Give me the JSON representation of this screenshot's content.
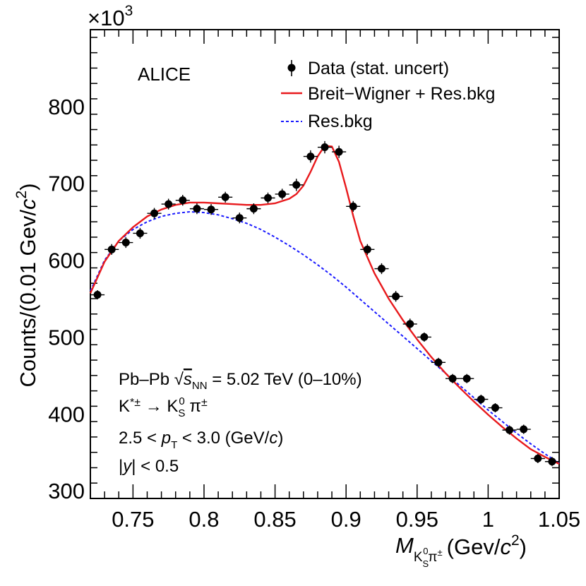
{
  "chart_data": {
    "type": "scatter",
    "title": "",
    "experiment": "ALICE",
    "xlabel": {
      "main": "M",
      "sub1": "K",
      "sub_s": "S",
      "sup_0": "0",
      "pion": "π",
      "pm": "±",
      "units_open": "(Gev/",
      "units_c": "c",
      "units_sq": "2",
      "units_close": ")"
    },
    "ylabel": {
      "text": "Counts/(0.01 Gev/",
      "c": "c",
      "sq": "2",
      "close": ")"
    },
    "y_multiplier": {
      "base": "×10",
      "exp": "3"
    },
    "xlim": [
      0.72,
      1.05
    ],
    "ylim": [
      290,
      900
    ],
    "xticks": [
      0.75,
      0.8,
      0.85,
      0.9,
      0.95,
      1.0,
      1.05
    ],
    "xtick_labels": [
      "0.75",
      "0.8",
      "0.85",
      "0.9",
      "0.95",
      "1",
      "1.05"
    ],
    "yticks": [
      300,
      400,
      500,
      600,
      700,
      800
    ],
    "ytick_labels": [
      "300",
      "400",
      "500",
      "600",
      "700",
      "800"
    ],
    "legend": [
      {
        "label": "Data (stat. uncert)",
        "style": "marker"
      },
      {
        "label": "Breit−Wigner + Res.bkg",
        "style": "solid",
        "color": "#e8191c"
      },
      {
        "label": "Res.bkg",
        "style": "dashed",
        "color": "#1a1aff"
      }
    ],
    "series": [
      {
        "name": "Data (stat. uncert)",
        "x": [
          0.725,
          0.735,
          0.745,
          0.755,
          0.765,
          0.775,
          0.785,
          0.795,
          0.805,
          0.815,
          0.825,
          0.835,
          0.845,
          0.855,
          0.865,
          0.875,
          0.885,
          0.895,
          0.905,
          0.915,
          0.925,
          0.935,
          0.945,
          0.955,
          0.965,
          0.975,
          0.985,
          0.995,
          1.005,
          1.015,
          1.025,
          1.035,
          1.045
        ],
        "y": [
          555,
          614,
          623,
          635,
          661,
          673,
          678,
          667,
          666,
          682,
          655,
          667,
          681,
          686,
          698,
          735,
          747,
          741,
          670,
          614,
          589,
          553,
          517,
          500,
          467,
          446,
          446,
          419,
          408,
          379,
          380,
          342,
          338
        ],
        "yerr": [
          6,
          7,
          7,
          7,
          7,
          7,
          7,
          7,
          7,
          7,
          7,
          7,
          7,
          7,
          8,
          8,
          8,
          8,
          7,
          7,
          7,
          7,
          7,
          6,
          6,
          6,
          6,
          6,
          6,
          6,
          6,
          6,
          6
        ],
        "xerr": 0.005
      },
      {
        "name": "Breit−Wigner + Res.bkg",
        "color": "#e8191c",
        "x": [
          0.72,
          0.73,
          0.74,
          0.75,
          0.76,
          0.77,
          0.78,
          0.79,
          0.8,
          0.81,
          0.82,
          0.83,
          0.84,
          0.85,
          0.86,
          0.865,
          0.87,
          0.875,
          0.88,
          0.885,
          0.89,
          0.895,
          0.9,
          0.905,
          0.91,
          0.92,
          0.93,
          0.94,
          0.95,
          0.96,
          0.97,
          0.98,
          0.99,
          1.0,
          1.01,
          1.02,
          1.03,
          1.04,
          1.05
        ],
        "y": [
          557,
          598,
          625,
          643,
          657,
          666,
          672,
          675,
          675,
          674,
          673,
          672,
          672,
          674,
          680,
          686,
          697,
          715,
          735,
          749,
          748,
          728,
          694,
          658,
          625,
          583,
          550,
          522,
          497,
          474,
          453,
          434,
          416,
          399,
          383,
          368,
          354,
          344,
          335
        ]
      },
      {
        "name": "Res.bkg",
        "color": "#1a1aff",
        "x": [
          0.72,
          0.73,
          0.74,
          0.75,
          0.76,
          0.77,
          0.78,
          0.79,
          0.8,
          0.81,
          0.82,
          0.83,
          0.84,
          0.85,
          0.86,
          0.87,
          0.88,
          0.89,
          0.9,
          0.91,
          0.92,
          0.93,
          0.94,
          0.95,
          0.96,
          0.97,
          0.98,
          0.99,
          1.0,
          1.01,
          1.02,
          1.03,
          1.04,
          1.05
        ],
        "y": [
          560,
          600,
          625,
          640,
          650,
          657,
          661,
          663,
          662,
          659,
          654,
          648,
          640,
          630,
          619,
          607,
          594,
          580,
          565,
          549,
          533,
          517,
          501,
          485,
          469,
          453,
          437,
          421,
          405,
          390,
          375,
          361,
          348,
          336
        ]
      }
    ],
    "annotations": {
      "system": {
        "pre": "Pb–Pb ",
        "sqrt": "√",
        "s": "s",
        "nn": "NN",
        "post": " = 5.02 TeV (0–10%)"
      },
      "decay": {
        "k": "K",
        "star": "*±",
        "arrow": " → K",
        "s": "S",
        "zero": "0",
        "pi": " π",
        "pm": "±"
      },
      "pt": {
        "pre": "2.5 < ",
        "p": "p",
        "t": "T",
        "post": " < 3.0 (GeV/",
        "c": "c",
        "close": ")"
      },
      "rapidity": {
        "pre": "|",
        "y": "y",
        "post": "| < 0.5"
      }
    }
  }
}
